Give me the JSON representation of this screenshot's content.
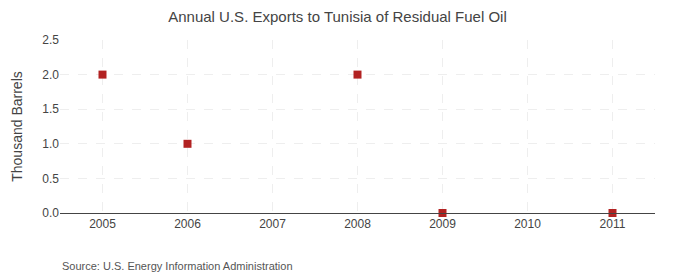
{
  "chart_data": {
    "type": "scatter",
    "title": "Annual U.S. Exports to Tunisia of Residual Fuel Oil",
    "ylabel": "Thousand Barrels",
    "annotations": [
      "Source: U.S. Energy Information Administration"
    ],
    "x": [
      2005,
      2006,
      2008,
      2009,
      2011
    ],
    "values": [
      2.0,
      1.0,
      2.0,
      0.0,
      0.0
    ],
    "color": "#b22222",
    "marker": "square",
    "xlim": [
      2004.5,
      2011.5
    ],
    "xticks": [
      2005,
      2006,
      2007,
      2008,
      2009,
      2010,
      2011
    ],
    "ylim": [
      0.0,
      2.5
    ],
    "yticks": [
      {
        "value": 0.0,
        "label": "0.0"
      },
      0.5,
      {
        "value": 1.0,
        "label": "1.0"
      },
      1.5,
      {
        "value": 2.0,
        "label": "2.0"
      },
      2.5
    ],
    "grid": true
  }
}
